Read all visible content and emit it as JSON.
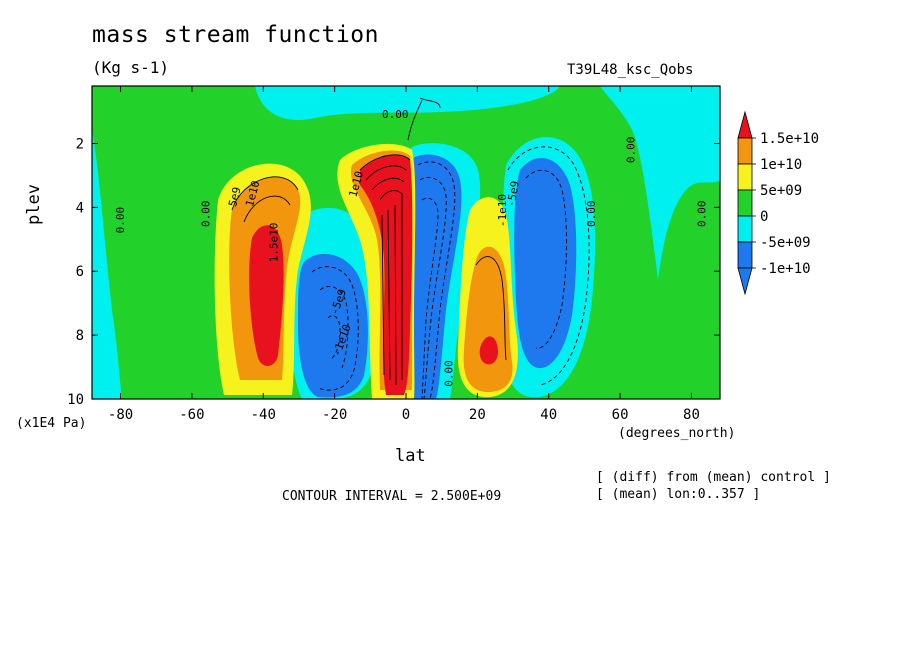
{
  "chart_data": {
    "type": "heatmap",
    "title": "mass stream function",
    "units": "(Kg s-1)",
    "run_label": "T39L48_ksc_Qobs",
    "xlabel": "lat",
    "x_units": "(degrees_north)",
    "ylabel": "plev",
    "y_units": "(x1E4 Pa)",
    "xlim": [
      -88,
      88
    ],
    "ylim": [
      10,
      0.2
    ],
    "x_ticks": [
      -80,
      -60,
      -40,
      -20,
      0,
      20,
      40,
      60,
      80
    ],
    "x_tick_labels": [
      "-80",
      "-60",
      "-40",
      "-20",
      "0",
      "20",
      "40",
      "60",
      "80"
    ],
    "y_ticks": [
      2,
      4,
      6,
      8,
      10
    ],
    "y_tick_labels": [
      "2",
      "4",
      "6",
      "8",
      "10"
    ],
    "contour_interval_text": "CONTOUR INTERVAL = 2.500E+09",
    "notes": [
      "[ (diff) from (mean) control ]",
      "[ (mean) lon:0..357 ]"
    ],
    "colorbar": {
      "labels": [
        "1.5e+10",
        "1e+10",
        "5e+09",
        "0",
        "-5e+09",
        "-1e+10"
      ],
      "levels": [
        15000000000.0,
        10000000000.0,
        5000000000.0,
        0,
        -5000000000.0,
        -10000000000.0
      ],
      "colors": [
        "#e8121e",
        "#f2960e",
        "#f6f21d",
        "#22d22a",
        "#00f0f0",
        "#1e78ee",
        "#1e78ee"
      ]
    },
    "contour_labels": [
      "0.00",
      "0.00",
      "0.00",
      "0.00",
      "0.00",
      "0.00",
      "0.00",
      "5e9",
      "1e10",
      "1.5e10",
      "-5e9",
      "-1e10",
      "1e10",
      "-5e9",
      "-1e10"
    ],
    "features": [
      {
        "name": "SH Ferrel-like positive cell",
        "lat_range": [
          -45,
          -30
        ],
        "plev_range": [
          2.5,
          9.5
        ],
        "peak": 15000000000.0
      },
      {
        "name": "SH negative cell",
        "lat_range": [
          -32,
          -12
        ],
        "plev_range": [
          4.5,
          9.8
        ],
        "peak": -13000000000.0
      },
      {
        "name": "equatorial positive cell",
        "lat_range": [
          -10,
          -1
        ],
        "plev_range": [
          2,
          10
        ],
        "peak": 17000000000.0
      },
      {
        "name": "equatorial negative cell",
        "lat_range": [
          1,
          12
        ],
        "plev_range": [
          2,
          10
        ],
        "peak": -15000000000.0
      },
      {
        "name": "NH positive cell",
        "lat_range": [
          14,
          30
        ],
        "plev_range": [
          3.5,
          9.8
        ],
        "peak": 15000000000.0
      },
      {
        "name": "NH negative cell",
        "lat_range": [
          30,
          48
        ],
        "plev_range": [
          2.5,
          9
        ],
        "peak": -10000000000.0
      }
    ]
  }
}
